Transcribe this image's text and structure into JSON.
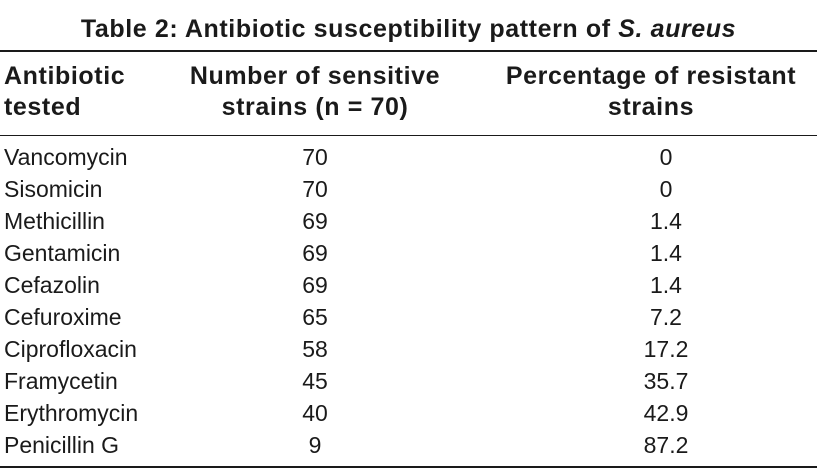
{
  "table": {
    "title_prefix": "Table 2: Antibiotic susceptibility pattern of ",
    "title_species": "S. aureus",
    "headers": {
      "antibiotic": [
        "Antibiotic",
        "tested"
      ],
      "sensitive": [
        "Number of sensitive",
        "strains (n = 70)"
      ],
      "resistant": [
        "Percentage of resistant",
        "strains"
      ]
    },
    "rows": [
      {
        "antibiotic": "Vancomycin",
        "sensitive": "70",
        "resistant": "0"
      },
      {
        "antibiotic": "Sisomicin",
        "sensitive": "70",
        "resistant": "0"
      },
      {
        "antibiotic": "Methicillin",
        "sensitive": "69",
        "resistant": "1.4"
      },
      {
        "antibiotic": "Gentamicin",
        "sensitive": "69",
        "resistant": "1.4"
      },
      {
        "antibiotic": "Cefazolin",
        "sensitive": "69",
        "resistant": "1.4"
      },
      {
        "antibiotic": "Cefuroxime",
        "sensitive": "65",
        "resistant": "7.2"
      },
      {
        "antibiotic": "Ciprofloxacin",
        "sensitive": "58",
        "resistant": "17.2"
      },
      {
        "antibiotic": "Framycetin",
        "sensitive": "45",
        "resistant": "35.7"
      },
      {
        "antibiotic": "Erythromycin",
        "sensitive": "40",
        "resistant": "42.9"
      },
      {
        "antibiotic": "Penicillin G",
        "sensitive": "9",
        "resistant": "87.2"
      }
    ]
  }
}
